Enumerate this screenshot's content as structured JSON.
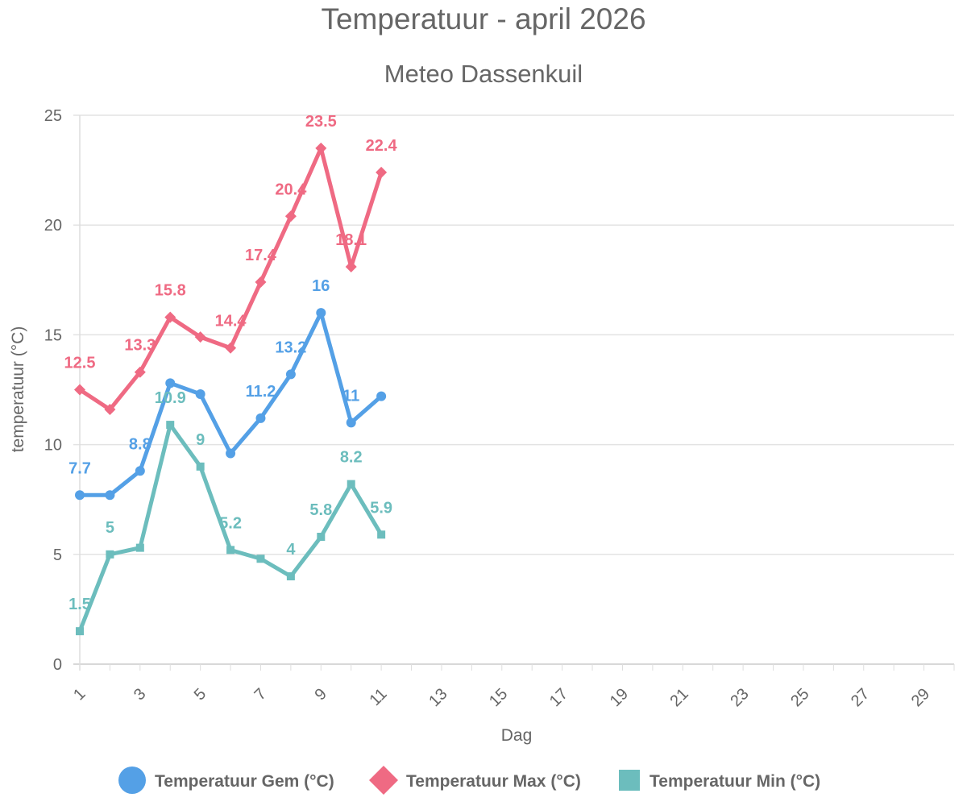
{
  "chart_data": {
    "type": "line",
    "title": "Temperatuur - april 2026",
    "subtitle": "Meteo Dassenkuil",
    "xlabel": "Dag",
    "ylabel": "temperatuur (°C)",
    "xlim": [
      1,
      30
    ],
    "ylim": [
      0,
      25
    ],
    "x_ticks": [
      1,
      3,
      5,
      7,
      9,
      11,
      13,
      15,
      17,
      19,
      21,
      23,
      25,
      27,
      29
    ],
    "y_ticks": [
      0,
      5,
      10,
      15,
      20,
      25
    ],
    "grid": true,
    "legend": "bottom",
    "x": [
      1,
      2,
      3,
      4,
      5,
      6,
      7,
      8,
      9,
      10,
      11
    ],
    "series": [
      {
        "name": "Temperatuur Gem (°C)",
        "color": "#54a0e6",
        "marker": "circle",
        "values": [
          7.7,
          7.7,
          8.8,
          12.8,
          12.3,
          9.6,
          11.2,
          13.2,
          16,
          11,
          12.2
        ],
        "labeled": [
          true,
          false,
          true,
          false,
          false,
          false,
          true,
          true,
          true,
          true,
          false
        ]
      },
      {
        "name": "Temperatuur Max (°C)",
        "color": "#ef6a83",
        "marker": "diamond",
        "values": [
          12.5,
          11.6,
          13.3,
          15.8,
          14.9,
          14.4,
          17.4,
          20.4,
          23.5,
          18.1,
          22.4
        ],
        "labeled": [
          true,
          false,
          true,
          true,
          false,
          true,
          true,
          true,
          true,
          true,
          true
        ]
      },
      {
        "name": "Temperatuur Min (°C)",
        "color": "#6cbdbd",
        "marker": "square",
        "values": [
          1.5,
          5,
          5.3,
          10.9,
          9,
          5.2,
          4.8,
          4,
          5.8,
          8.2,
          5.9
        ],
        "labeled": [
          true,
          true,
          false,
          true,
          true,
          true,
          false,
          true,
          true,
          true,
          true
        ]
      }
    ]
  }
}
